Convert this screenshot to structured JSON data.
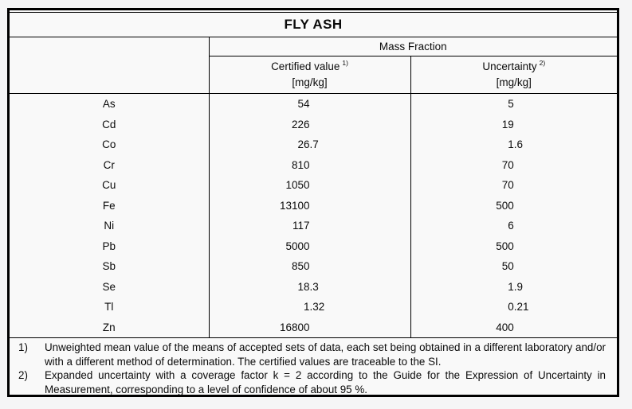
{
  "table": {
    "title": "FLY ASH",
    "group_header": "Mass Fraction",
    "columns": [
      {
        "label": "Certified value",
        "footnote_ref": "1)",
        "unit": "[mg/kg]"
      },
      {
        "label": "Uncertainty",
        "footnote_ref": "2)",
        "unit": "[mg/kg]"
      }
    ],
    "rows": [
      {
        "element": "As",
        "certified": "54",
        "uncertainty": "5"
      },
      {
        "element": "Cd",
        "certified": "226",
        "uncertainty": "19"
      },
      {
        "element": "Co",
        "certified": "26.7",
        "uncertainty": "1.6"
      },
      {
        "element": "Cr",
        "certified": "810",
        "uncertainty": "70"
      },
      {
        "element": "Cu",
        "certified": "1050",
        "uncertainty": "70"
      },
      {
        "element": "Fe",
        "certified": "13100",
        "uncertainty": "500"
      },
      {
        "element": "Ni",
        "certified": "117",
        "uncertainty": "6"
      },
      {
        "element": "Pb",
        "certified": "5000",
        "uncertainty": "500"
      },
      {
        "element": "Sb",
        "certified": "850",
        "uncertainty": "50"
      },
      {
        "element": "Se",
        "certified": "18.3",
        "uncertainty": "1.9"
      },
      {
        "element": "Tl",
        "certified": "1.32",
        "uncertainty": "0.21"
      },
      {
        "element": "Zn",
        "certified": "16800",
        "uncertainty": "400"
      }
    ],
    "footnotes": [
      {
        "marker": "1)",
        "text": "Unweighted mean value of the means of accepted sets of data, each set being obtained in a different laboratory and/or with a different method of determination. The certified values are traceable to the SI."
      },
      {
        "marker": "2)",
        "text": "Expanded uncertainty with a coverage factor k = 2 according to the Guide for the Expression of Uncertainty in Measurement, corresponding to a level of confidence of about 95 %."
      }
    ]
  },
  "colors": {
    "border": "#000000",
    "text": "#0b0b0b",
    "page_bg": "#f5f5f6",
    "table_bg": "#f9f9f9"
  }
}
